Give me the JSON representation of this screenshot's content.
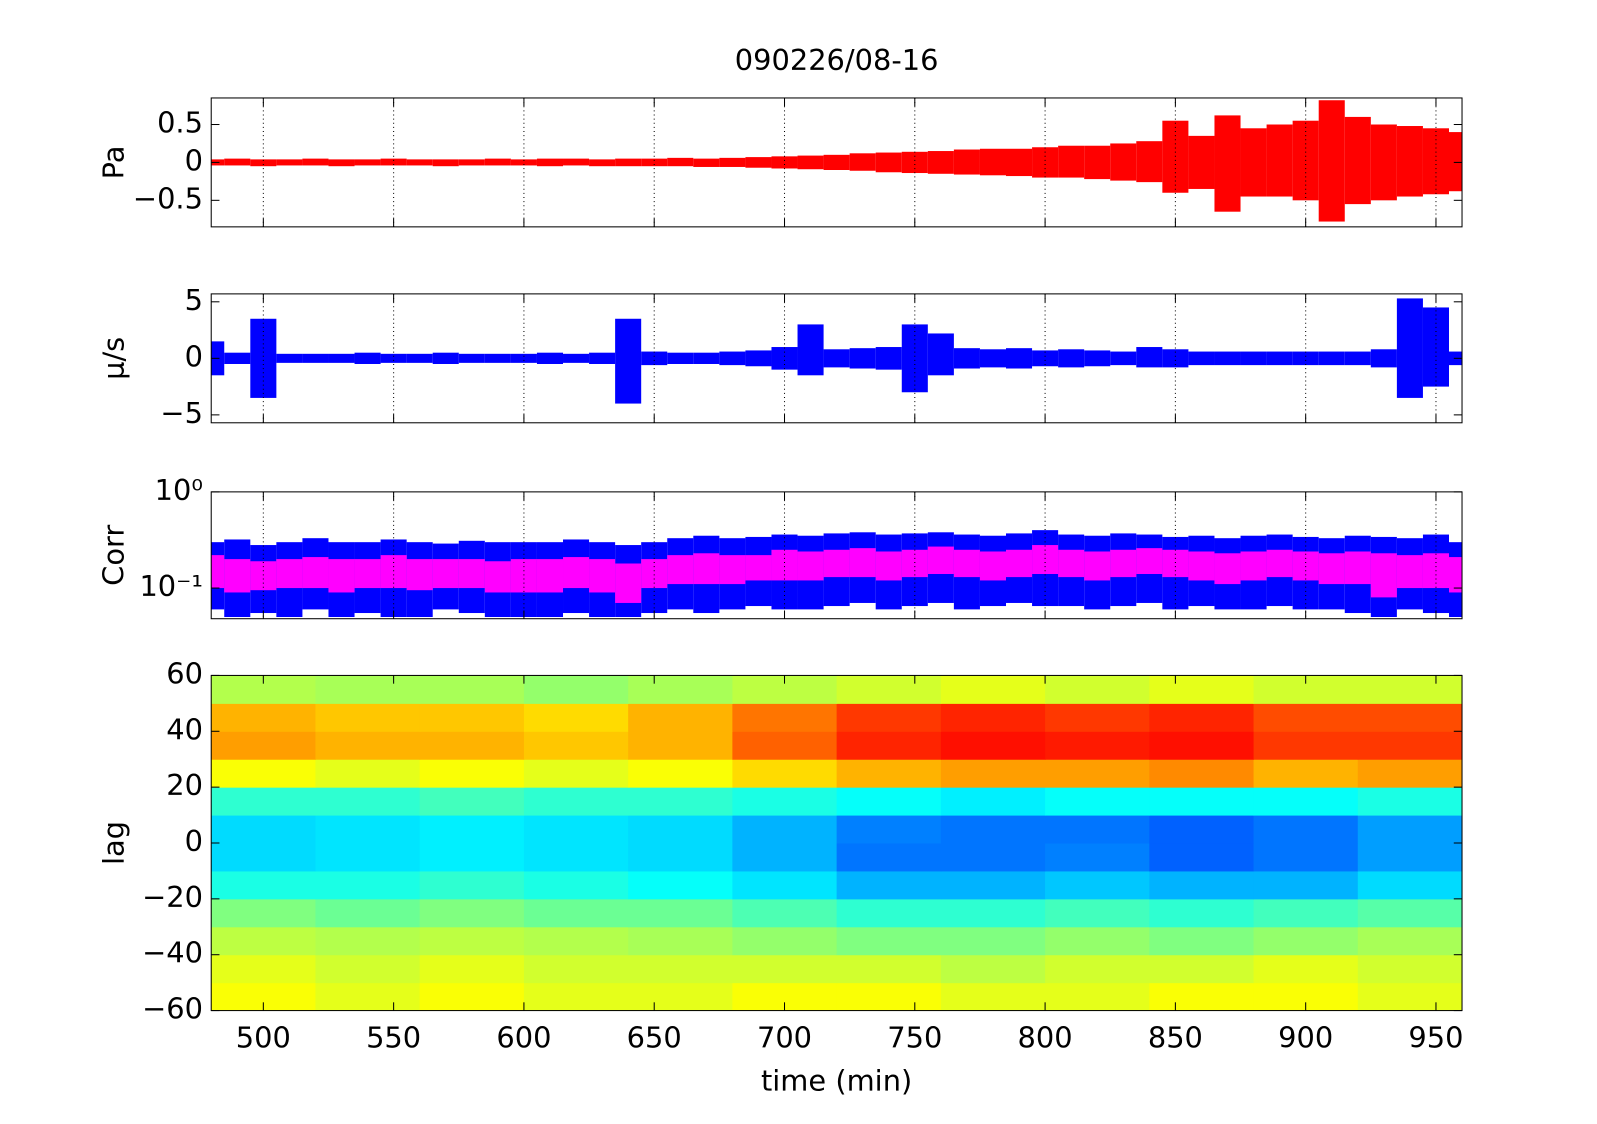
{
  "chart_data": [
    {
      "type": "band",
      "title": "090226/08-16",
      "ylabel": "Pa",
      "xlim": [
        480,
        960
      ],
      "xticks": [
        500,
        550,
        600,
        650,
        700,
        750,
        800,
        850,
        900,
        950
      ],
      "ylim": [
        -0.85,
        0.85
      ],
      "yticks": [
        {
          "value": -0.5,
          "label": "−0.5"
        },
        0,
        0.5
      ],
      "grid": true,
      "x": [
        480,
        490,
        500,
        510,
        520,
        530,
        540,
        550,
        560,
        570,
        580,
        590,
        600,
        610,
        620,
        630,
        640,
        650,
        660,
        670,
        680,
        690,
        700,
        710,
        720,
        730,
        740,
        750,
        760,
        770,
        780,
        790,
        800,
        810,
        820,
        830,
        840,
        850,
        860,
        870,
        880,
        890,
        900,
        910,
        920,
        930,
        940,
        950,
        960
      ],
      "series": [
        {
          "color": "#ff0000",
          "upper": [
            0.04,
            0.05,
            0.04,
            0.04,
            0.05,
            0.04,
            0.04,
            0.05,
            0.04,
            0.04,
            0.04,
            0.05,
            0.04,
            0.05,
            0.05,
            0.04,
            0.05,
            0.05,
            0.06,
            0.05,
            0.06,
            0.07,
            0.08,
            0.09,
            0.1,
            0.12,
            0.13,
            0.14,
            0.15,
            0.17,
            0.18,
            0.18,
            0.2,
            0.22,
            0.22,
            0.25,
            0.28,
            0.55,
            0.35,
            0.62,
            0.45,
            0.5,
            0.55,
            0.82,
            0.6,
            0.5,
            0.48,
            0.45,
            0.4
          ],
          "lower": [
            -0.04,
            -0.04,
            -0.05,
            -0.04,
            -0.04,
            -0.05,
            -0.04,
            -0.04,
            -0.04,
            -0.05,
            -0.04,
            -0.04,
            -0.04,
            -0.05,
            -0.04,
            -0.05,
            -0.05,
            -0.05,
            -0.05,
            -0.06,
            -0.06,
            -0.07,
            -0.08,
            -0.09,
            -0.1,
            -0.11,
            -0.13,
            -0.14,
            -0.15,
            -0.16,
            -0.17,
            -0.18,
            -0.2,
            -0.2,
            -0.22,
            -0.24,
            -0.26,
            -0.4,
            -0.35,
            -0.65,
            -0.45,
            -0.45,
            -0.5,
            -0.78,
            -0.55,
            -0.5,
            -0.45,
            -0.42,
            -0.38
          ]
        }
      ]
    },
    {
      "type": "band",
      "ylabel": "μ/s",
      "xlim": [
        480,
        960
      ],
      "xticks": [
        500,
        550,
        600,
        650,
        700,
        750,
        800,
        850,
        900,
        950
      ],
      "ylim": [
        -5.7,
        5.7
      ],
      "yticks": [
        {
          "value": -5,
          "label": "−5"
        },
        0,
        5
      ],
      "grid": true,
      "x": [
        480,
        490,
        500,
        510,
        520,
        530,
        540,
        550,
        560,
        570,
        580,
        590,
        600,
        610,
        620,
        630,
        640,
        650,
        660,
        670,
        680,
        690,
        700,
        710,
        720,
        730,
        740,
        750,
        760,
        770,
        780,
        790,
        800,
        810,
        820,
        830,
        840,
        850,
        860,
        870,
        880,
        890,
        900,
        910,
        920,
        930,
        940,
        950,
        960
      ],
      "series": [
        {
          "color": "#0000ff",
          "upper": [
            1.5,
            0.5,
            3.5,
            0.4,
            0.4,
            0.4,
            0.5,
            0.4,
            0.4,
            0.5,
            0.4,
            0.4,
            0.4,
            0.5,
            0.4,
            0.5,
            3.5,
            0.6,
            0.5,
            0.5,
            0.6,
            0.7,
            1.0,
            3.0,
            0.8,
            0.9,
            1.0,
            3.0,
            2.2,
            0.9,
            0.8,
            0.9,
            0.7,
            0.8,
            0.7,
            0.6,
            1.0,
            0.8,
            0.6,
            0.6,
            0.6,
            0.6,
            0.6,
            0.6,
            0.6,
            0.8,
            5.3,
            4.5,
            0.6
          ],
          "lower": [
            -1.5,
            -0.5,
            -3.5,
            -0.4,
            -0.4,
            -0.4,
            -0.5,
            -0.4,
            -0.4,
            -0.5,
            -0.4,
            -0.4,
            -0.4,
            -0.5,
            -0.4,
            -0.5,
            -4.0,
            -0.6,
            -0.5,
            -0.5,
            -0.6,
            -0.7,
            -1.0,
            -1.5,
            -0.8,
            -0.9,
            -1.0,
            -3.0,
            -1.5,
            -0.9,
            -0.8,
            -0.9,
            -0.7,
            -0.8,
            -0.7,
            -0.6,
            -0.8,
            -0.8,
            -0.6,
            -0.6,
            -0.6,
            -0.6,
            -0.6,
            -0.6,
            -0.6,
            -0.8,
            -3.5,
            -2.5,
            -0.6
          ]
        }
      ]
    },
    {
      "type": "band",
      "ylabel": "Corr",
      "log_y": true,
      "xlim": [
        480,
        960
      ],
      "xticks": [
        500,
        550,
        600,
        650,
        700,
        750,
        800,
        850,
        900,
        950
      ],
      "ylim": [
        0.048,
        1
      ],
      "yticks": [
        {
          "value": 0.1,
          "label": "10⁻¹"
        },
        {
          "value": 1,
          "label": "10⁰"
        }
      ],
      "grid": true,
      "x": [
        480,
        490,
        500,
        510,
        520,
        530,
        540,
        550,
        560,
        570,
        580,
        590,
        600,
        610,
        620,
        630,
        640,
        650,
        660,
        670,
        680,
        690,
        700,
        710,
        720,
        730,
        740,
        750,
        760,
        770,
        780,
        790,
        800,
        810,
        820,
        830,
        840,
        850,
        860,
        870,
        880,
        890,
        900,
        910,
        920,
        930,
        940,
        950,
        960
      ],
      "series": [
        {
          "color": "#0000ff",
          "upper": [
            0.3,
            0.32,
            0.28,
            0.3,
            0.33,
            0.3,
            0.3,
            0.32,
            0.3,
            0.29,
            0.31,
            0.3,
            0.3,
            0.3,
            0.32,
            0.3,
            0.28,
            0.3,
            0.33,
            0.35,
            0.33,
            0.34,
            0.36,
            0.35,
            0.37,
            0.38,
            0.36,
            0.37,
            0.38,
            0.36,
            0.35,
            0.37,
            0.4,
            0.36,
            0.35,
            0.37,
            0.36,
            0.34,
            0.35,
            0.33,
            0.35,
            0.36,
            0.34,
            0.33,
            0.35,
            0.34,
            0.33,
            0.36,
            0.3
          ],
          "lower": [
            0.06,
            0.05,
            0.055,
            0.05,
            0.06,
            0.05,
            0.055,
            0.05,
            0.05,
            0.06,
            0.055,
            0.05,
            0.05,
            0.05,
            0.055,
            0.05,
            0.05,
            0.055,
            0.06,
            0.055,
            0.06,
            0.065,
            0.06,
            0.06,
            0.065,
            0.07,
            0.06,
            0.065,
            0.07,
            0.06,
            0.065,
            0.07,
            0.065,
            0.065,
            0.06,
            0.065,
            0.07,
            0.06,
            0.065,
            0.06,
            0.06,
            0.065,
            0.06,
            0.06,
            0.055,
            0.05,
            0.06,
            0.055,
            0.05
          ]
        },
        {
          "color": "#ff00ff",
          "upper": [
            0.22,
            0.2,
            0.19,
            0.2,
            0.21,
            0.2,
            0.2,
            0.22,
            0.2,
            0.2,
            0.2,
            0.19,
            0.2,
            0.2,
            0.21,
            0.2,
            0.18,
            0.2,
            0.22,
            0.23,
            0.22,
            0.22,
            0.25,
            0.24,
            0.25,
            0.26,
            0.24,
            0.25,
            0.27,
            0.25,
            0.24,
            0.25,
            0.28,
            0.25,
            0.24,
            0.25,
            0.26,
            0.25,
            0.24,
            0.23,
            0.24,
            0.25,
            0.24,
            0.23,
            0.24,
            0.23,
            0.22,
            0.23,
            0.21
          ],
          "lower": [
            0.1,
            0.09,
            0.095,
            0.1,
            0.1,
            0.09,
            0.1,
            0.1,
            0.095,
            0.1,
            0.1,
            0.09,
            0.09,
            0.09,
            0.1,
            0.09,
            0.07,
            0.1,
            0.11,
            0.11,
            0.11,
            0.12,
            0.12,
            0.12,
            0.13,
            0.13,
            0.12,
            0.13,
            0.14,
            0.13,
            0.12,
            0.13,
            0.14,
            0.13,
            0.12,
            0.13,
            0.14,
            0.13,
            0.12,
            0.11,
            0.12,
            0.13,
            0.12,
            0.11,
            0.11,
            0.08,
            0.1,
            0.1,
            0.09
          ]
        }
      ]
    },
    {
      "type": "heatmap",
      "ylabel": "lag",
      "xlabel": "time (min)",
      "colormap": "jet",
      "clim": [
        0,
        1
      ],
      "grid": false,
      "xlim": [
        480,
        960
      ],
      "xticks": [
        500,
        550,
        600,
        650,
        700,
        750,
        800,
        850,
        900,
        950
      ],
      "ylim": [
        -60,
        60
      ],
      "yticks": [
        {
          "value": -60,
          "label": "−60"
        },
        {
          "value": -40,
          "label": "−40"
        },
        {
          "value": -20,
          "label": "−20"
        },
        0,
        20,
        40,
        60
      ],
      "x_edges": [
        480,
        520,
        560,
        600,
        640,
        680,
        720,
        760,
        800,
        840,
        880,
        920,
        960
      ],
      "y_edges": [
        -60,
        -50,
        -40,
        -30,
        -20,
        -10,
        0,
        10,
        20,
        30,
        40,
        50,
        60
      ],
      "z": [
        [
          0.62,
          0.6,
          0.62,
          0.6,
          0.6,
          0.62,
          0.62,
          0.6,
          0.6,
          0.62,
          0.62,
          0.6
        ],
        [
          0.6,
          0.58,
          0.6,
          0.58,
          0.58,
          0.58,
          0.58,
          0.56,
          0.58,
          0.58,
          0.6,
          0.58
        ],
        [
          0.56,
          0.55,
          0.56,
          0.55,
          0.54,
          0.52,
          0.5,
          0.5,
          0.52,
          0.5,
          0.52,
          0.54
        ],
        [
          0.5,
          0.48,
          0.5,
          0.48,
          0.48,
          0.45,
          0.42,
          0.42,
          0.44,
          0.42,
          0.44,
          0.46
        ],
        [
          0.4,
          0.4,
          0.42,
          0.4,
          0.38,
          0.35,
          0.3,
          0.3,
          0.32,
          0.3,
          0.3,
          0.34
        ],
        [
          0.34,
          0.35,
          0.36,
          0.35,
          0.34,
          0.3,
          0.24,
          0.24,
          0.25,
          0.22,
          0.24,
          0.28
        ],
        [
          0.34,
          0.35,
          0.36,
          0.35,
          0.34,
          0.3,
          0.25,
          0.24,
          0.24,
          0.22,
          0.24,
          0.28
        ],
        [
          0.42,
          0.42,
          0.44,
          0.42,
          0.42,
          0.4,
          0.38,
          0.36,
          0.38,
          0.38,
          0.38,
          0.4
        ],
        [
          0.62,
          0.6,
          0.62,
          0.6,
          0.62,
          0.66,
          0.7,
          0.72,
          0.72,
          0.74,
          0.7,
          0.72
        ],
        [
          0.72,
          0.7,
          0.7,
          0.68,
          0.7,
          0.78,
          0.84,
          0.86,
          0.85,
          0.86,
          0.82,
          0.82
        ],
        [
          0.7,
          0.68,
          0.68,
          0.66,
          0.7,
          0.76,
          0.82,
          0.84,
          0.82,
          0.84,
          0.8,
          0.8
        ],
        [
          0.55,
          0.54,
          0.54,
          0.52,
          0.54,
          0.56,
          0.58,
          0.6,
          0.58,
          0.6,
          0.58,
          0.58
        ]
      ]
    }
  ]
}
